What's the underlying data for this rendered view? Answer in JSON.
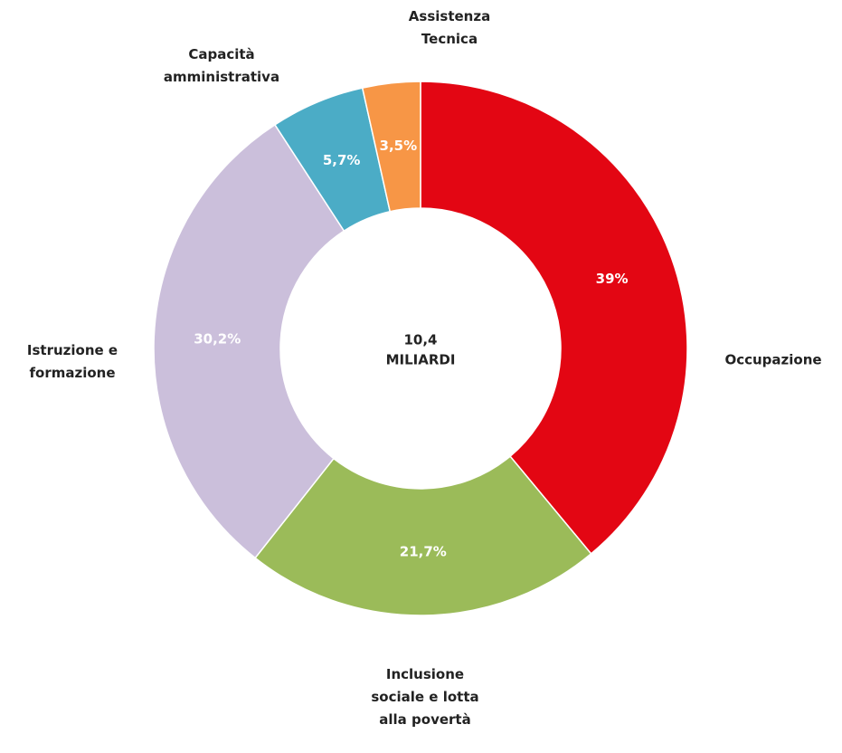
{
  "chart_data": {
    "type": "donut",
    "categories": [
      "Occupazione",
      "Inclusione\nsociale e lotta\nalla povertà",
      "Istruzione e\nformazione",
      "Capacità\namministrativa",
      "Assistenza\nTecnica"
    ],
    "values": [
      39,
      21.7,
      30.2,
      5.7,
      3.5
    ],
    "value_labels": [
      "39%",
      "21,7%",
      "30,2%",
      "5,7%",
      "3,5%"
    ],
    "colors": [
      "#e30613",
      "#9bbb59",
      "#cbbfdb",
      "#4bacc6",
      "#f79646"
    ],
    "annotations": [
      "10,4",
      "MILIARDI"
    ]
  }
}
